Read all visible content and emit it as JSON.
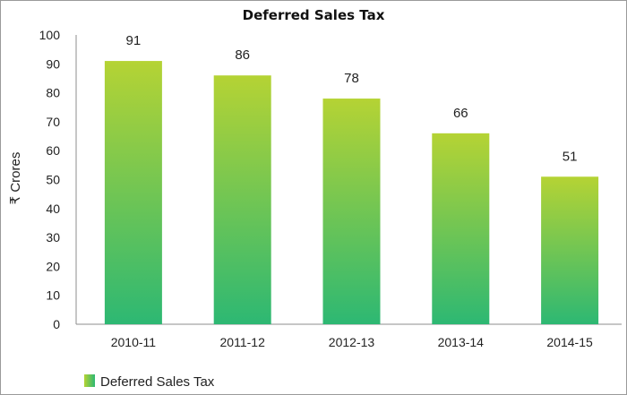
{
  "chart_data": {
    "type": "bar",
    "title": "Deferred Sales Tax",
    "ylabel": "₹ Crores",
    "xlabel": "",
    "categories": [
      "2010-11",
      "2011-12",
      "2012-13",
      "2013-14",
      "2014-15"
    ],
    "series": [
      {
        "name": "Deferred Sales Tax",
        "values": [
          91,
          86,
          78,
          66,
          51
        ]
      }
    ],
    "ylim": [
      0,
      100
    ],
    "yticks": [
      0,
      10,
      20,
      30,
      40,
      50,
      60,
      70,
      80,
      90,
      100
    ],
    "grid": false,
    "legend": "bottom-left",
    "data_labels": true,
    "colors": {
      "bar_top": "#b5d334",
      "bar_bottom": "#2db873"
    }
  }
}
